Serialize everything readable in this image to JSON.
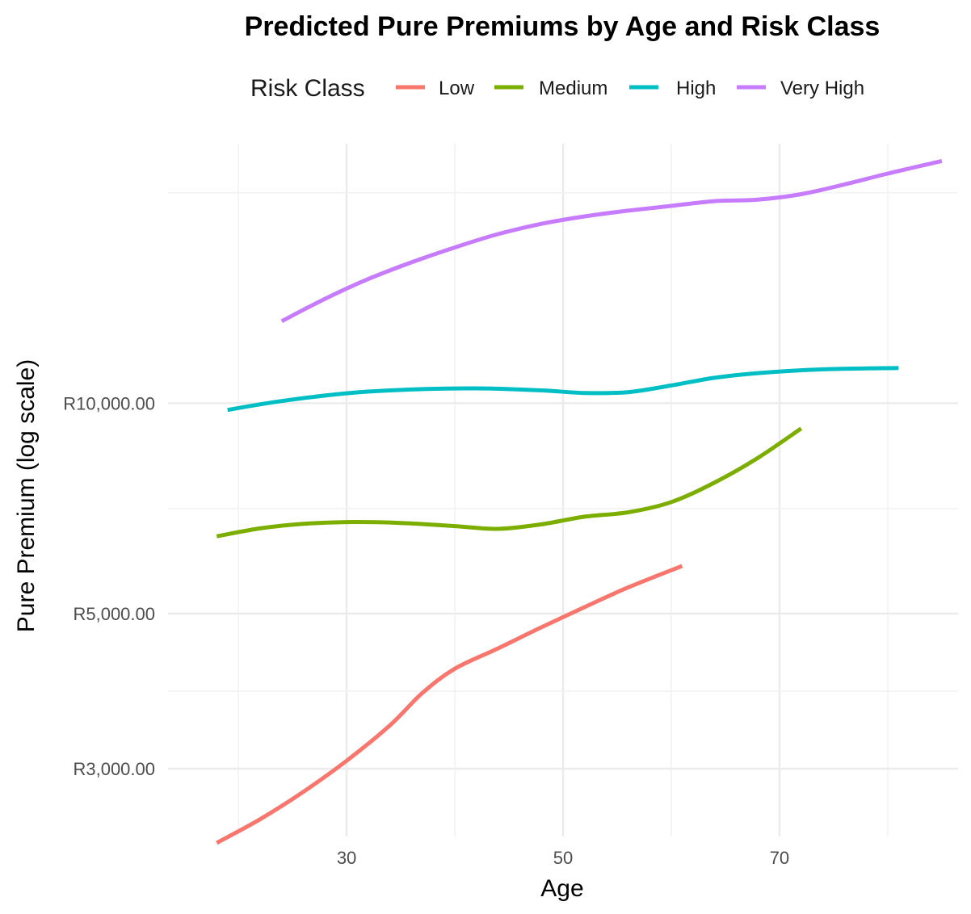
{
  "chart_data": {
    "type": "line",
    "title": "Predicted Pure Premiums by Age and Risk Class",
    "xlabel": "Age",
    "ylabel": "Pure Premium (log scale)",
    "y_scale": "log",
    "xlim": [
      13.5,
      86.5
    ],
    "ylim": [
      2400,
      23500
    ],
    "x_ticks": [
      30,
      50,
      70
    ],
    "x_tick_labels": [
      "30",
      "50",
      "70"
    ],
    "y_ticks": [
      3000,
      5000,
      10000
    ],
    "y_tick_labels": [
      "R3,000.00",
      "R5,000.00",
      "R10,000.00"
    ],
    "grid": true,
    "legend": {
      "title": "Risk Class",
      "position": "top"
    },
    "series": [
      {
        "name": "Low",
        "color": "#F8766D",
        "x": [
          18,
          22,
          26,
          30,
          34,
          37,
          40,
          44,
          48,
          52,
          56,
          61
        ],
        "y": [
          2350,
          2540,
          2780,
          3080,
          3460,
          3850,
          4170,
          4460,
          4780,
          5110,
          5450,
          5850
        ]
      },
      {
        "name": "Medium",
        "color": "#7CAE00",
        "x": [
          18,
          22,
          26,
          30,
          35,
          40,
          44,
          48,
          52,
          56,
          60,
          64,
          68,
          72
        ],
        "y": [
          6450,
          6620,
          6720,
          6760,
          6740,
          6670,
          6610,
          6710,
          6880,
          6980,
          7220,
          7700,
          8350,
          9200
        ]
      },
      {
        "name": "High",
        "color": "#00BFC4",
        "x": [
          19,
          24,
          30,
          36,
          42,
          48,
          52,
          56,
          60,
          64,
          68,
          74,
          81
        ],
        "y": [
          9780,
          10070,
          10330,
          10460,
          10500,
          10430,
          10340,
          10370,
          10600,
          10870,
          11040,
          11180,
          11230
        ]
      },
      {
        "name": "Very High",
        "color": "#C77CFF",
        "x": [
          24,
          28,
          32,
          36,
          40,
          44,
          48,
          52,
          56,
          60,
          64,
          68,
          72,
          76,
          80,
          85
        ],
        "y": [
          13100,
          14100,
          15050,
          15900,
          16700,
          17450,
          18050,
          18500,
          18850,
          19150,
          19450,
          19550,
          19900,
          20550,
          21300,
          22200
        ]
      }
    ]
  }
}
